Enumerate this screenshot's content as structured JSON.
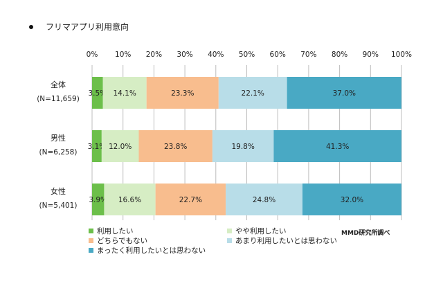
{
  "chart_data": {
    "type": "bar",
    "orientation": "horizontal",
    "stacked": true,
    "title": "フリマアプリ利用意向",
    "x_ticks": [
      "0%",
      "10%",
      "20%",
      "30%",
      "40%",
      "50%",
      "60%",
      "70%",
      "80%",
      "90%",
      "100%"
    ],
    "xlim": [
      0,
      100
    ],
    "grid": true,
    "categories": [
      {
        "name": "全体",
        "sub": "(N=11,659)"
      },
      {
        "name": "男性",
        "sub": "(N=6,258)"
      },
      {
        "name": "女性",
        "sub": "(N=5,401)"
      }
    ],
    "series": [
      {
        "name": "利用したい",
        "color": "#6cbf4a",
        "values": [
          3.5,
          3.1,
          3.9
        ],
        "labels": [
          "3.5%",
          "3.1%",
          "3.9%"
        ]
      },
      {
        "name": "やや利用したい",
        "color": "#d6edc4",
        "values": [
          14.1,
          12.0,
          16.6
        ],
        "labels": [
          "14.1%",
          "12.0%",
          "16.6%"
        ]
      },
      {
        "name": "どちらでもない",
        "color": "#f8bd8e",
        "values": [
          23.3,
          23.8,
          22.7
        ],
        "labels": [
          "23.3%",
          "23.8%",
          "22.7%"
        ]
      },
      {
        "name": "あまり利用したいとは思わない",
        "color": "#b8dde8",
        "values": [
          22.1,
          19.8,
          24.8
        ],
        "labels": [
          "22.1%",
          "19.8%",
          "24.8%"
        ]
      },
      {
        "name": "まったく利用したいとは思わない",
        "color": "#49a9c4",
        "values": [
          37.0,
          41.3,
          32.0
        ],
        "labels": [
          "37.0%",
          "41.3%",
          "32.0%"
        ]
      }
    ],
    "legend_position": "bottom",
    "source": "MMD研究所調べ"
  }
}
